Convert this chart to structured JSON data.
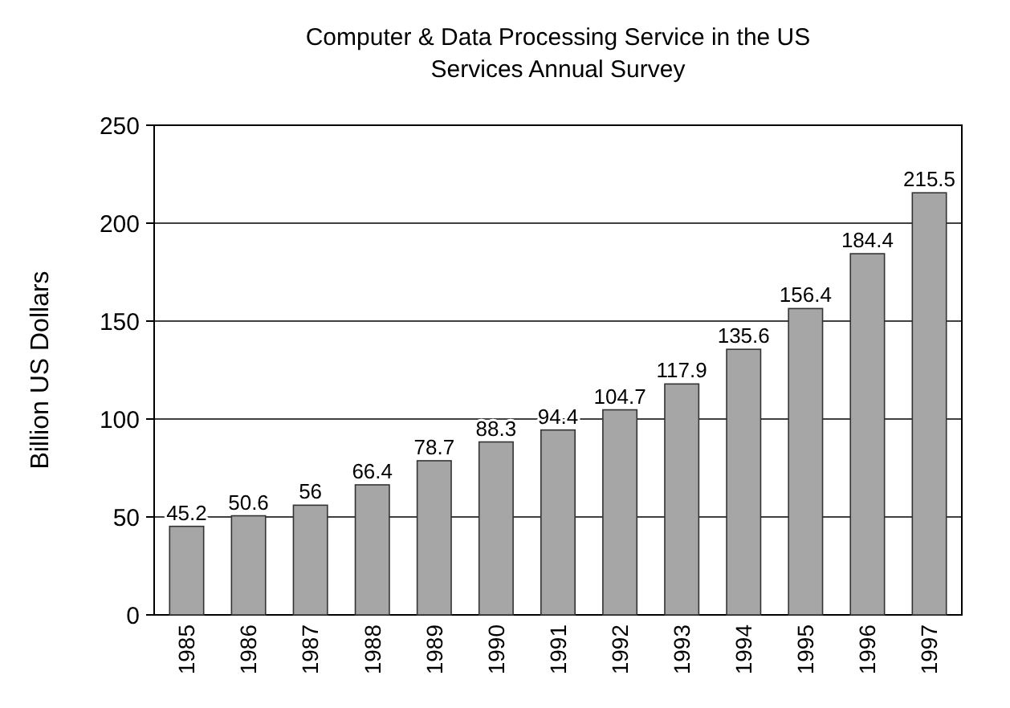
{
  "chart_data": {
    "type": "bar",
    "title": "Computer & Data Processing Service in the US",
    "subtitle": "Services Annual Survey",
    "ylabel": "Billion US Dollars",
    "categories": [
      "1985",
      "1986",
      "1987",
      "1988",
      "1989",
      "1990",
      "1991",
      "1992",
      "1993",
      "1994",
      "1995",
      "1996",
      "1997"
    ],
    "values": [
      45.2,
      50.6,
      56,
      66.4,
      78.7,
      88.3,
      94.4,
      104.7,
      117.9,
      135.6,
      156.4,
      184.4,
      215.5
    ],
    "color": "#a6a6a6",
    "ylim": [
      0,
      250
    ],
    "yticks": [
      0,
      50,
      100,
      150,
      200,
      250
    ],
    "grid": "y",
    "data_labels": true
  }
}
